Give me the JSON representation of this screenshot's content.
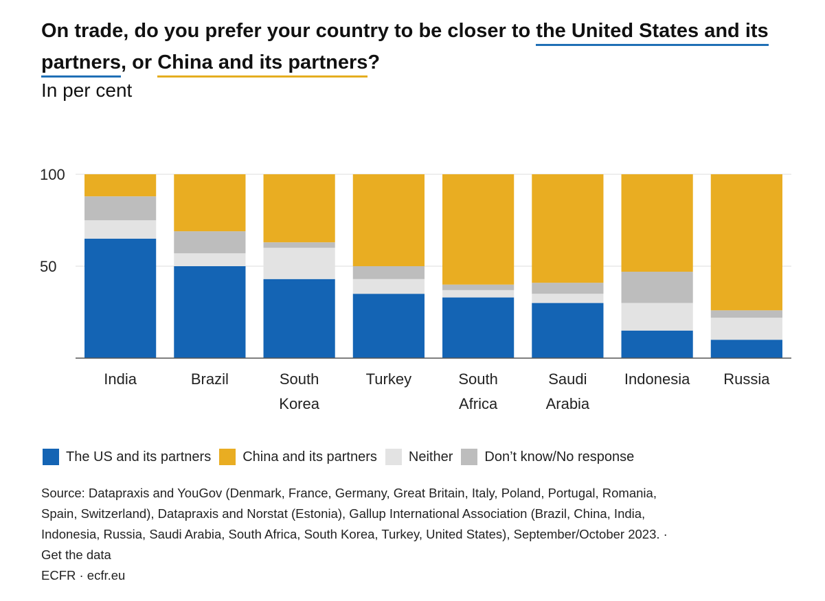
{
  "title": {
    "prefix": "On trade, do you prefer your country to be closer to ",
    "us_phrase": "the United States and its partners",
    "middle": ", or ",
    "china_phrase": "China and its partners",
    "suffix": "?"
  },
  "subtitle": "In per cent",
  "colors": {
    "us": "#1464b4",
    "china": "#e9ad22",
    "neither": "#e3e3e3",
    "dont_know": "#bdbdbd",
    "title_us_underline": "#1f6fb5",
    "title_china_underline": "#e5ad1f"
  },
  "chart_data": {
    "type": "bar",
    "stacked": true,
    "categories": [
      "India",
      "Brazil",
      "South Korea",
      "Turkey",
      "South Africa",
      "Saudi Arabia",
      "Indonesia",
      "Russia"
    ],
    "series": [
      {
        "name": "The US and its partners",
        "values": [
          65,
          50,
          43,
          35,
          33,
          30,
          15,
          10
        ]
      },
      {
        "name": "Neither",
        "values": [
          10,
          7,
          17,
          8,
          4,
          5,
          15,
          12
        ]
      },
      {
        "name": "Don’t know/No response",
        "values": [
          13,
          12,
          3,
          7,
          3,
          6,
          17,
          4
        ]
      },
      {
        "name": "China and its partners",
        "values": [
          12,
          31,
          37,
          50,
          60,
          59,
          53,
          74
        ]
      }
    ],
    "ylim": [
      0,
      100
    ],
    "yticks": [
      50,
      100
    ],
    "xlabel": "",
    "ylabel": "",
    "grid": true,
    "legend_position": "bottom"
  },
  "legend": [
    {
      "label": "The US and its partners",
      "color": "#1464b4"
    },
    {
      "label": "China and its partners",
      "color": "#e9ad22"
    },
    {
      "label": "Neither",
      "color": "#e3e3e3"
    },
    {
      "label": "Don’t know/No response",
      "color": "#bdbdbd"
    }
  ],
  "footer": {
    "source_lines": [
      "Source: Datapraxis and YouGov (Denmark, France, Germany, Great Britain, Italy, Poland, Portugal, Romania,",
      "Spain, Switzerland), Datapraxis and Norstat (Estonia), Gallup International Association (Brazil, China, India,",
      "Indonesia, Russia, Saudi Arabia, South Africa, South Korea, Turkey, United States), September/October 2023. ·",
      "Get the data"
    ],
    "credit": "ECFR · ecfr.eu"
  }
}
